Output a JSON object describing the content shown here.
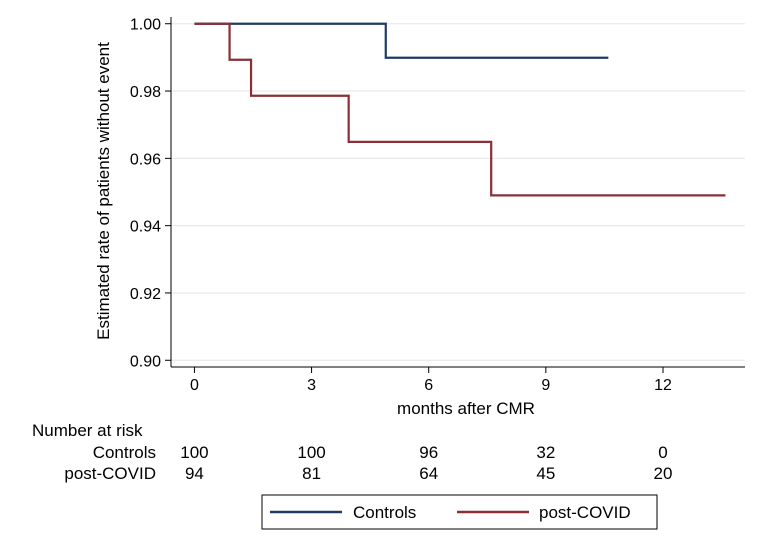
{
  "chart_data": {
    "type": "line",
    "title": "",
    "xlabel": "months after CMR",
    "ylabel": "Estimated rate of patients without event",
    "xlim": [
      -0.6,
      14.1
    ],
    "ylim": [
      0.898,
      1.002
    ],
    "xticks": [
      0,
      3,
      6,
      9,
      12
    ],
    "yticks": [
      0.9,
      0.92,
      0.94,
      0.96,
      0.98,
      1.0
    ],
    "ytick_labels": [
      "0.90",
      "0.92",
      "0.94",
      "0.96",
      "0.98",
      "1.00"
    ],
    "grid": true,
    "step": true,
    "series": [
      {
        "name": "Controls",
        "color": "#1f3b63",
        "x": [
          0,
          4.9,
          10.6
        ],
        "y": [
          1.0,
          0.9899,
          0.9899
        ]
      },
      {
        "name": "post-COVID",
        "color": "#8b2e35",
        "x": [
          0,
          0.9,
          1.45,
          3.95,
          7.6,
          13.6
        ],
        "y": [
          1.0,
          0.9893,
          0.9786,
          0.9649,
          0.949,
          0.949
        ]
      }
    ],
    "risk_table": {
      "title": "Number at risk",
      "rows": [
        {
          "label": "Controls",
          "values": [
            "100",
            "100",
            "96",
            "32",
            "0"
          ]
        },
        {
          "label": "post-COVID",
          "values": [
            "94",
            "81",
            "64",
            "45",
            "20"
          ]
        }
      ]
    },
    "legend": {
      "position": "bottom",
      "entries": [
        "Controls",
        "post-COVID"
      ]
    }
  }
}
